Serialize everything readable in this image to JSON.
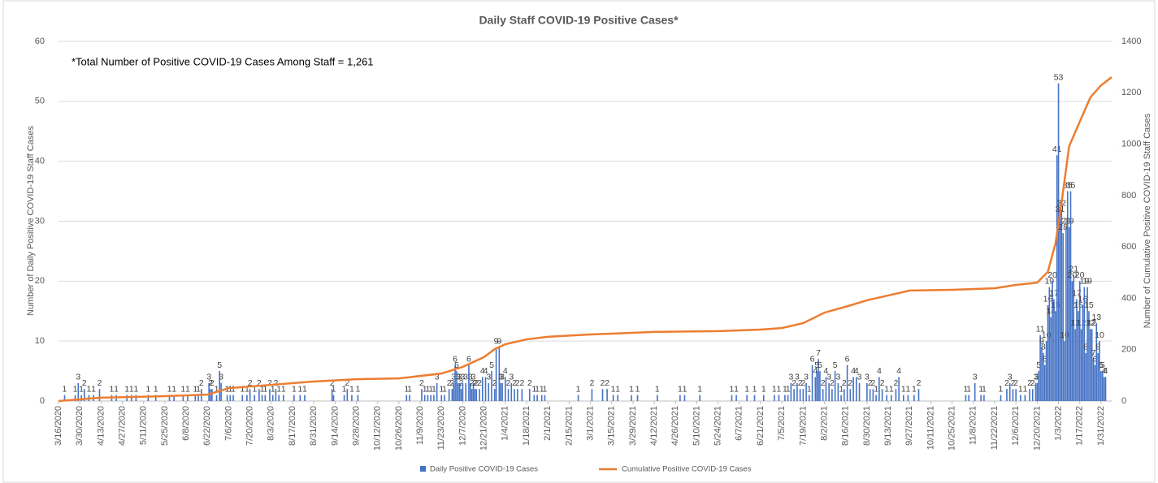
{
  "chart_data": {
    "type": "bar_line",
    "title": "Daily Staff COVID-19 Positive Cases*",
    "annotation": "*Total Number of Positive COVID-19  Cases Among Staff = 1,261",
    "y_label": "Number of Daily Positive COVID-19 Staff Cases",
    "y2_label": "Number of Cumulative Positive COVID-19 Staff Cases",
    "xlim": [
      "3/16/2020",
      "2/7/2022"
    ],
    "xticks": [
      "3/16/2020",
      "3/30/2020",
      "4/13/2020",
      "4/27/2020",
      "5/11/2020",
      "5/25/2020",
      "6/8/2020",
      "6/22/2020",
      "7/6/2020",
      "7/20/2020",
      "8/3/2020",
      "8/17/2020",
      "8/31/2020",
      "9/14/2020",
      "9/28/2020",
      "10/12/2020",
      "10/26/2020",
      "11/9/2020",
      "11/23/2020",
      "12/7/2020",
      "12/21/2020",
      "1/4/2021",
      "1/18/2021",
      "2/1/2021",
      "2/15/2021",
      "3/1/2021",
      "3/15/2021",
      "3/29/2021",
      "4/12/2021",
      "4/26/2021",
      "5/10/2021",
      "5/24/2021",
      "6/7/2021",
      "6/21/2021",
      "7/5/2021",
      "7/19/2021",
      "8/2/2021",
      "8/16/2021",
      "8/30/2021",
      "9/13/2021",
      "9/27/2021",
      "10/11/2021",
      "10/25/2021",
      "11/8/2021",
      "11/22/2021",
      "12/6/2021",
      "12/20/2021",
      "1/3/2022",
      "1/17/2022",
      "1/31/2022"
    ],
    "ylim": [
      0,
      60
    ],
    "yticks": [
      0,
      10,
      20,
      30,
      40,
      50,
      60
    ],
    "y2lim": [
      0,
      1400
    ],
    "y2ticks": [
      0,
      200,
      400,
      600,
      800,
      1000,
      1200,
      1400
    ],
    "grid": true,
    "legend": "bottom",
    "series": [
      {
        "name": "Daily Positive COVID-19 Cases",
        "type": "bar",
        "color": "#4472c4",
        "x": [
          "3/20/2020",
          "3/27/2020",
          "3/29/2020",
          "3/31/2020",
          "4/2/2020",
          "4/5/2020",
          "4/8/2020",
          "4/12/2020",
          "4/20/2020",
          "4/23/2020",
          "4/30/2020",
          "5/3/2020",
          "5/6/2020",
          "5/14/2020",
          "5/19/2020",
          "5/28/2020",
          "5/31/2020",
          "6/6/2020",
          "6/9/2020",
          "6/14/2020",
          "6/16/2020",
          "6/18/2020",
          "6/23/2020",
          "6/24/2020",
          "6/25/2020",
          "6/28/2020",
          "6/30/2020",
          "7/1/2020",
          "7/5/2020",
          "7/7/2020",
          "7/9/2020",
          "7/15/2020",
          "7/18/2020",
          "7/20/2020",
          "7/23/2020",
          "7/26/2020",
          "7/28/2020",
          "7/30/2020",
          "8/2/2020",
          "8/4/2020",
          "8/6/2020",
          "8/8/2020",
          "8/11/2020",
          "8/18/2020",
          "8/22/2020",
          "8/25/2020",
          "9/12/2020",
          "9/13/2020",
          "9/20/2020",
          "9/22/2020",
          "9/25/2020",
          "9/29/2020",
          "10/31/2020",
          "11/2/2020",
          "11/10/2020",
          "11/12/2020",
          "11/14/2020",
          "11/16/2020",
          "11/18/2020",
          "11/20/2020",
          "11/23/2020",
          "11/25/2020",
          "11/28/2020",
          "11/30/2020",
          "12/1/2020",
          "12/2/2020",
          "12/3/2020",
          "12/4/2020",
          "12/5/2020",
          "12/6/2020",
          "12/7/2020",
          "12/9/2020",
          "12/11/2020",
          "12/12/2020",
          "12/13/2020",
          "12/14/2020",
          "12/15/2020",
          "12/16/2020",
          "12/18/2020",
          "12/20/2020",
          "12/22/2020",
          "12/24/2020",
          "12/26/2020",
          "12/28/2020",
          "12/29/2020",
          "12/31/2020",
          "1/1/2021",
          "1/2/2021",
          "1/4/2021",
          "1/6/2021",
          "1/8/2021",
          "1/10/2021",
          "1/12/2021",
          "1/15/2021",
          "1/20/2021",
          "1/23/2021",
          "1/25/2021",
          "1/28/2021",
          "1/30/2021",
          "2/21/2021",
          "3/2/2021",
          "3/9/2021",
          "3/12/2021",
          "3/16/2021",
          "3/19/2021",
          "3/28/2021",
          "4/1/2021",
          "4/14/2021",
          "4/29/2021",
          "5/2/2021",
          "5/12/2021",
          "6/2/2021",
          "6/5/2021",
          "6/12/2021",
          "6/17/2021",
          "6/23/2021",
          "6/30/2021",
          "7/3/2021",
          "7/7/2021",
          "7/9/2021",
          "7/11/2021",
          "7/13/2021",
          "7/15/2021",
          "7/17/2021",
          "7/19/2021",
          "7/21/2021",
          "7/23/2021",
          "7/25/2021",
          "7/27/2021",
          "7/28/2021",
          "7/29/2021",
          "7/30/2021",
          "8/1/2021",
          "8/3/2021",
          "8/5/2021",
          "8/7/2021",
          "8/9/2021",
          "8/11/2021",
          "8/13/2021",
          "8/15/2021",
          "8/17/2021",
          "8/19/2021",
          "8/21/2021",
          "8/23/2021",
          "8/25/2021",
          "8/30/2021",
          "9/1/2021",
          "9/3/2021",
          "9/5/2021",
          "9/7/2021",
          "9/9/2021",
          "9/12/2021",
          "9/15/2021",
          "9/18/2021",
          "9/20/2021",
          "9/23/2021",
          "9/26/2021",
          "9/30/2021",
          "10/3/2021",
          "11/3/2021",
          "11/5/2021",
          "11/9/2021",
          "11/13/2021",
          "11/15/2021",
          "11/26/2021",
          "11/30/2021",
          "12/2/2021",
          "12/4/2021",
          "12/6/2021",
          "12/9/2021",
          "12/12/2021",
          "12/15/2021",
          "12/17/2021",
          "12/19/2021",
          "12/20/2021",
          "12/21/2021",
          "12/22/2021",
          "12/23/2021",
          "12/24/2021",
          "12/25/2021",
          "12/26/2021",
          "12/27/2021",
          "12/28/2021",
          "12/29/2021",
          "12/30/2021",
          "12/31/2021",
          "1/1/2022",
          "1/2/2022",
          "1/3/2022",
          "1/4/2022",
          "1/5/2022",
          "1/6/2022",
          "1/7/2022",
          "1/8/2022",
          "1/9/2022",
          "1/10/2022",
          "1/11/2022",
          "1/12/2022",
          "1/13/2022",
          "1/14/2022",
          "1/15/2022",
          "1/16/2022",
          "1/17/2022",
          "1/18/2022",
          "1/19/2022",
          "1/20/2022",
          "1/21/2022",
          "1/22/2022",
          "1/23/2022",
          "1/24/2022",
          "1/25/2022",
          "1/26/2022",
          "1/27/2022",
          "1/28/2022",
          "1/29/2022",
          "1/30/2022",
          "1/31/2022",
          "2/1/2022",
          "2/2/2022",
          "2/3/2022"
        ],
        "values": [
          1,
          1,
          3,
          1,
          2,
          1,
          1,
          2,
          1,
          1,
          1,
          1,
          1,
          1,
          1,
          1,
          1,
          1,
          1,
          1,
          1,
          2,
          3,
          2,
          2,
          1,
          5,
          3,
          1,
          1,
          1,
          1,
          1,
          2,
          1,
          2,
          1,
          1,
          2,
          1,
          2,
          1,
          1,
          1,
          1,
          1,
          2,
          1,
          1,
          2,
          1,
          1,
          1,
          1,
          2,
          1,
          1,
          1,
          1,
          3,
          1,
          1,
          2,
          2,
          3,
          6,
          5,
          3,
          3,
          2,
          3,
          3,
          6,
          3,
          2,
          3,
          2,
          2,
          2,
          4,
          4,
          3,
          5,
          2,
          9,
          9,
          3,
          3,
          4,
          2,
          3,
          2,
          2,
          2,
          2,
          1,
          1,
          1,
          1,
          1,
          2,
          2,
          2,
          1,
          1,
          1,
          1,
          1,
          1,
          1,
          1,
          1,
          1,
          1,
          1,
          1,
          1,
          1,
          1,
          1,
          3,
          2,
          3,
          2,
          2,
          3,
          1,
          6,
          4,
          5,
          7,
          5,
          2,
          4,
          3,
          2,
          5,
          3,
          1,
          2,
          6,
          2,
          4,
          4,
          3,
          3,
          2,
          2,
          1,
          4,
          2,
          1,
          1,
          2,
          4,
          1,
          1,
          1,
          2,
          1,
          1,
          3,
          1,
          1,
          1,
          2,
          3,
          2,
          2,
          1,
          1,
          2,
          2,
          3,
          3,
          5,
          11,
          9,
          8,
          6,
          10,
          16,
          19,
          14,
          20,
          17,
          15,
          41,
          53,
          31,
          32,
          28,
          10,
          29,
          35,
          29,
          35,
          20,
          21,
          12,
          17,
          15,
          20,
          12,
          16,
          19,
          8,
          19,
          15,
          12,
          12,
          7,
          6,
          13,
          8,
          10,
          5,
          5,
          4,
          4
        ]
      },
      {
        "name": "Cumulative Positive COVID-19 Cases",
        "type": "line",
        "axis": "y2",
        "color": "#ed7d31",
        "x": [
          "3/16/2020",
          "4/13/2020",
          "5/25/2020",
          "6/22/2020",
          "7/6/2020",
          "8/3/2020",
          "8/31/2020",
          "9/28/2020",
          "10/26/2020",
          "11/23/2020",
          "12/7/2020",
          "12/21/2020",
          "12/28/2020",
          "1/4/2021",
          "1/18/2021",
          "2/1/2021",
          "3/1/2021",
          "4/12/2021",
          "5/24/2021",
          "6/21/2021",
          "7/5/2021",
          "7/19/2021",
          "8/2/2021",
          "8/16/2021",
          "8/30/2021",
          "9/13/2021",
          "9/27/2021",
          "10/25/2021",
          "11/22/2021",
          "12/6/2021",
          "12/20/2021",
          "12/27/2021",
          "1/1/2022",
          "1/5/2022",
          "1/10/2022",
          "1/17/2022",
          "1/24/2022",
          "1/31/2022",
          "2/7/2022"
        ],
        "values": [
          0,
          13,
          19,
          25,
          50,
          63,
          76,
          85,
          88,
          107,
          133,
          171,
          202,
          221,
          240,
          250,
          259,
          269,
          272,
          278,
          284,
          303,
          344,
          367,
          392,
          411,
          430,
          433,
          439,
          452,
          461,
          503,
          613,
          771,
          992,
          1087,
          1182,
          1229,
          1261
        ]
      }
    ]
  }
}
